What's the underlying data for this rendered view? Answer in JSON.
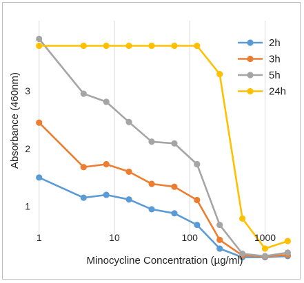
{
  "chart_data": {
    "type": "line",
    "title": "",
    "xlabel": "Minocycline Concentration (µg/ml)",
    "ylabel": "Absorbance (460nm)",
    "x_scale": "log",
    "xlim": [
      0.85,
      2300
    ],
    "ylim": [
      0.52,
      4.12
    ],
    "x_ticks": [
      1,
      10,
      100,
      1000
    ],
    "x_tick_labels": [
      "1",
      "10",
      "100",
      "1000"
    ],
    "y_ticks": [
      1,
      2,
      3
    ],
    "y_tick_labels": [
      "1",
      "2",
      "3"
    ],
    "grid": "vertical",
    "legend_position": "top-right",
    "x": [
      1,
      3.9,
      7.8,
      15.6,
      31.25,
      62.5,
      125,
      250,
      500,
      1000,
      2000
    ],
    "series": [
      {
        "name": "2h",
        "color": "#5b9bd5",
        "values": [
          1.5,
          1.15,
          1.2,
          1.12,
          0.95,
          0.88,
          0.68,
          0.27,
          0.12,
          0.12,
          0.14
        ]
      },
      {
        "name": "3h",
        "color": "#ed7d31",
        "values": [
          2.45,
          1.68,
          1.73,
          1.6,
          1.39,
          1.34,
          1.11,
          0.42,
          0.15,
          0.13,
          0.16
        ]
      },
      {
        "name": "5h",
        "color": "#a5a5a5",
        "values": [
          3.9,
          2.95,
          2.81,
          2.46,
          2.12,
          2.09,
          1.73,
          0.68,
          0.18,
          0.14,
          0.2
        ]
      },
      {
        "name": "24h",
        "color": "#ffc000",
        "values": [
          3.78,
          3.78,
          3.78,
          3.78,
          3.78,
          3.78,
          3.78,
          3.29,
          0.79,
          0.27,
          0.4
        ]
      }
    ]
  }
}
